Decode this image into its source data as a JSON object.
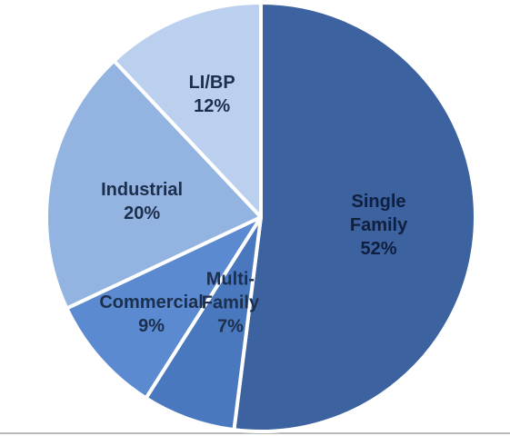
{
  "chart_data": {
    "type": "pie",
    "title": "",
    "start_angle_deg": 0,
    "direction": "clockwise",
    "slices": [
      {
        "name": "Single Family",
        "label_lines": [
          "Single",
          "Family",
          "52%"
        ],
        "value": 52,
        "color": "#3d62a0"
      },
      {
        "name": "Multi-Family",
        "label_lines": [
          "Multi-",
          "Family",
          "7%"
        ],
        "value": 7,
        "color": "#4a78bf"
      },
      {
        "name": "Commercial",
        "label_lines": [
          "Commercial",
          "9%"
        ],
        "value": 9,
        "color": "#5b8ad0"
      },
      {
        "name": "Industrial",
        "label_lines": [
          "Industrial",
          "20%"
        ],
        "value": 20,
        "color": "#93b3e0"
      },
      {
        "name": "LI/BP",
        "label_lines": [
          "LI/BP",
          "12%"
        ],
        "value": 12,
        "color": "#bad0ee"
      }
    ]
  }
}
